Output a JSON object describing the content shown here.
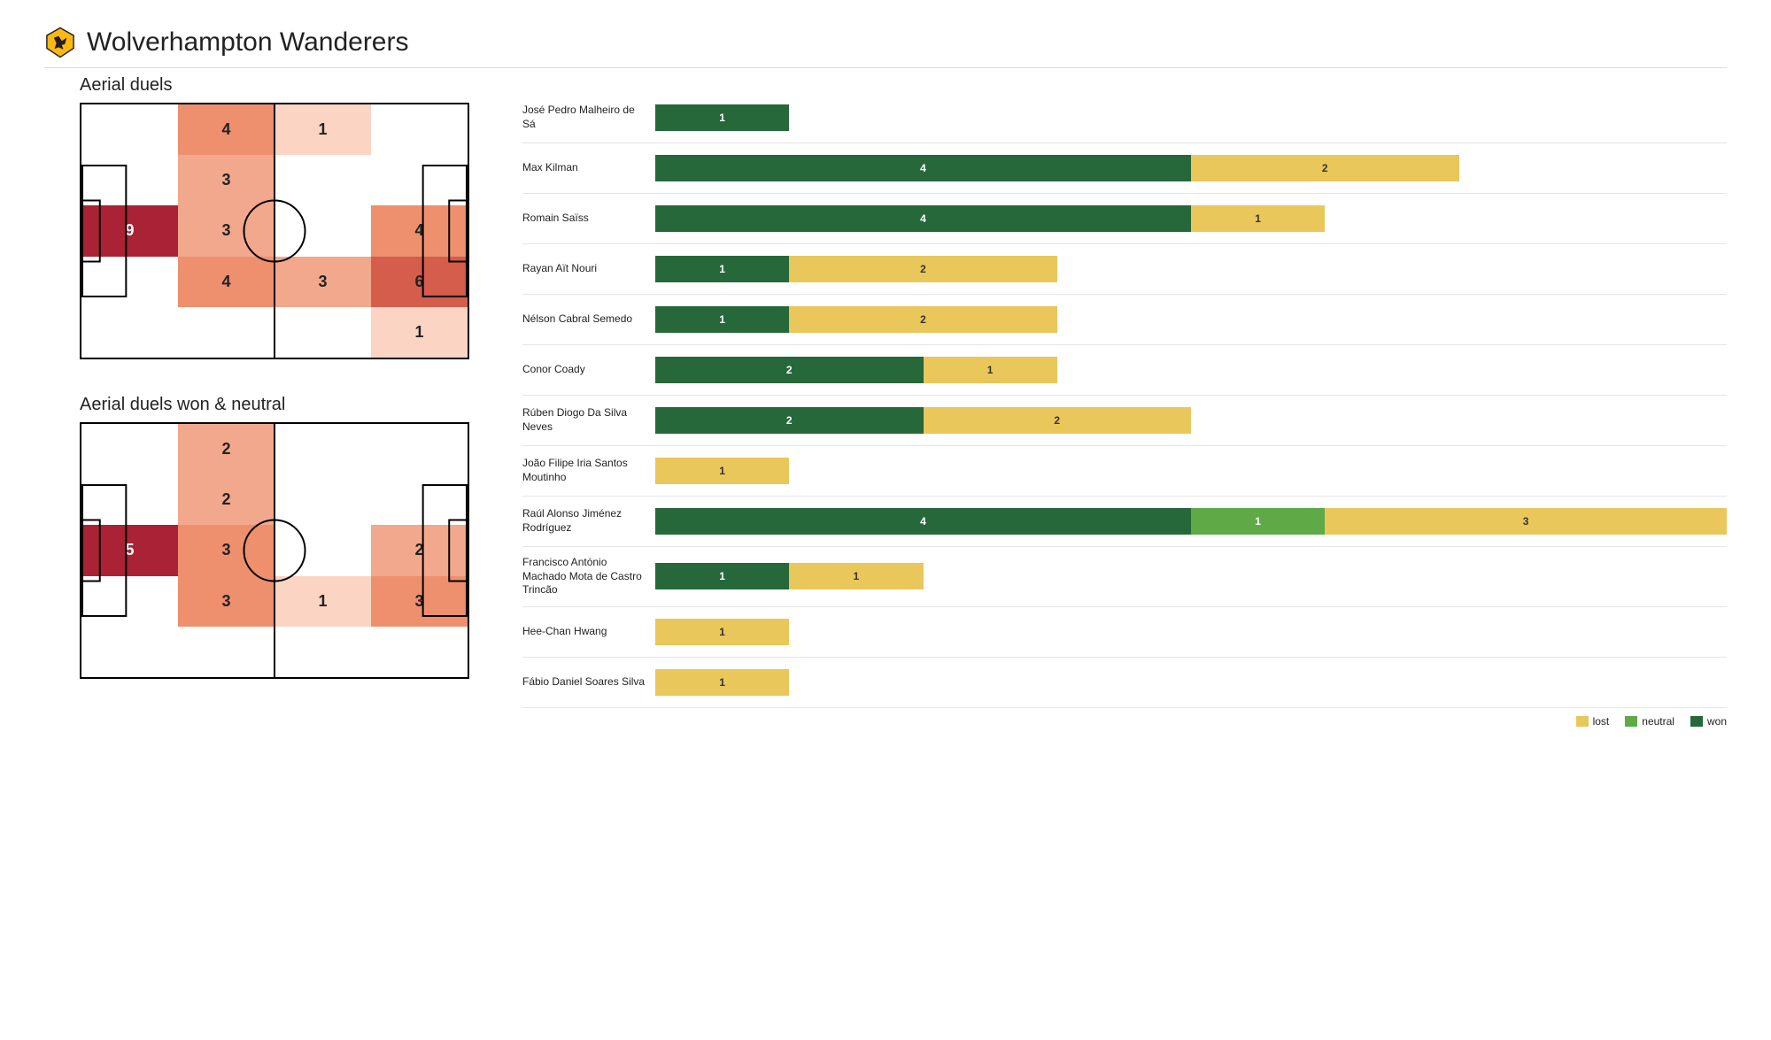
{
  "team": {
    "name": "Wolverhampton Wanderers",
    "crest_colors": {
      "gold": "#FDB913",
      "black": "#231F20"
    }
  },
  "colors": {
    "background": "#ffffff",
    "text": "#222222",
    "divider": "#dddddd",
    "row_divider": "#e5e5e5",
    "won": "#26683A",
    "neutral": "#5FAA47",
    "lost": "#E9C75A",
    "heat_scale": [
      "#ffffff",
      "#fbd4c4",
      "#f2a88c",
      "#ee906e",
      "#d45d4c",
      "#aa2235"
    ]
  },
  "heatmaps": {
    "top": {
      "title": "Aerial duels",
      "grid": [
        [
          null,
          4,
          1,
          null
        ],
        [
          null,
          3,
          null,
          null
        ],
        [
          9,
          3,
          null,
          4
        ],
        [
          null,
          4,
          3,
          6
        ],
        [
          null,
          null,
          null,
          1
        ]
      ],
      "intensity": [
        [
          0,
          3,
          1,
          0
        ],
        [
          0,
          2,
          0,
          0
        ],
        [
          5,
          2,
          0,
          3
        ],
        [
          0,
          3,
          2,
          4
        ],
        [
          0,
          0,
          0,
          1
        ]
      ]
    },
    "bottom": {
      "title": "Aerial duels won & neutral",
      "grid": [
        [
          null,
          2,
          null,
          null
        ],
        [
          null,
          2,
          null,
          null
        ],
        [
          5,
          3,
          null,
          2
        ],
        [
          null,
          3,
          1,
          3
        ],
        [
          null,
          null,
          null,
          null
        ]
      ],
      "intensity": [
        [
          0,
          2,
          0,
          0
        ],
        [
          0,
          2,
          0,
          0
        ],
        [
          5,
          3,
          0,
          2
        ],
        [
          0,
          3,
          1,
          3
        ],
        [
          0,
          0,
          0,
          0
        ]
      ]
    }
  },
  "bars": {
    "max_total": 8,
    "players": [
      {
        "name": "José Pedro Malheiro de Sá",
        "won": 1,
        "neutral": 0,
        "lost": 0
      },
      {
        "name": "Max Kilman",
        "won": 4,
        "neutral": 0,
        "lost": 2
      },
      {
        "name": "Romain Saïss",
        "won": 4,
        "neutral": 0,
        "lost": 1
      },
      {
        "name": "Rayan Aït Nouri",
        "won": 1,
        "neutral": 0,
        "lost": 2
      },
      {
        "name": "Nélson Cabral Semedo",
        "won": 1,
        "neutral": 0,
        "lost": 2
      },
      {
        "name": "Conor  Coady",
        "won": 2,
        "neutral": 0,
        "lost": 1
      },
      {
        "name": "Rúben Diogo Da Silva Neves",
        "won": 2,
        "neutral": 0,
        "lost": 2
      },
      {
        "name": "João Filipe Iria Santos Moutinho",
        "won": 0,
        "neutral": 0,
        "lost": 1
      },
      {
        "name": "Raúl Alonso Jiménez Rodríguez",
        "won": 4,
        "neutral": 1,
        "lost": 3
      },
      {
        "name": "Francisco António Machado Mota de Castro Trincão",
        "won": 1,
        "neutral": 0,
        "lost": 1
      },
      {
        "name": "Hee-Chan Hwang",
        "won": 0,
        "neutral": 0,
        "lost": 1
      },
      {
        "name": "Fábio Daniel Soares Silva",
        "won": 0,
        "neutral": 0,
        "lost": 1
      }
    ]
  },
  "legend": {
    "items": [
      {
        "label": "lost",
        "key": "lost"
      },
      {
        "label": "neutral",
        "key": "neutral"
      },
      {
        "label": "won",
        "key": "won"
      }
    ]
  }
}
